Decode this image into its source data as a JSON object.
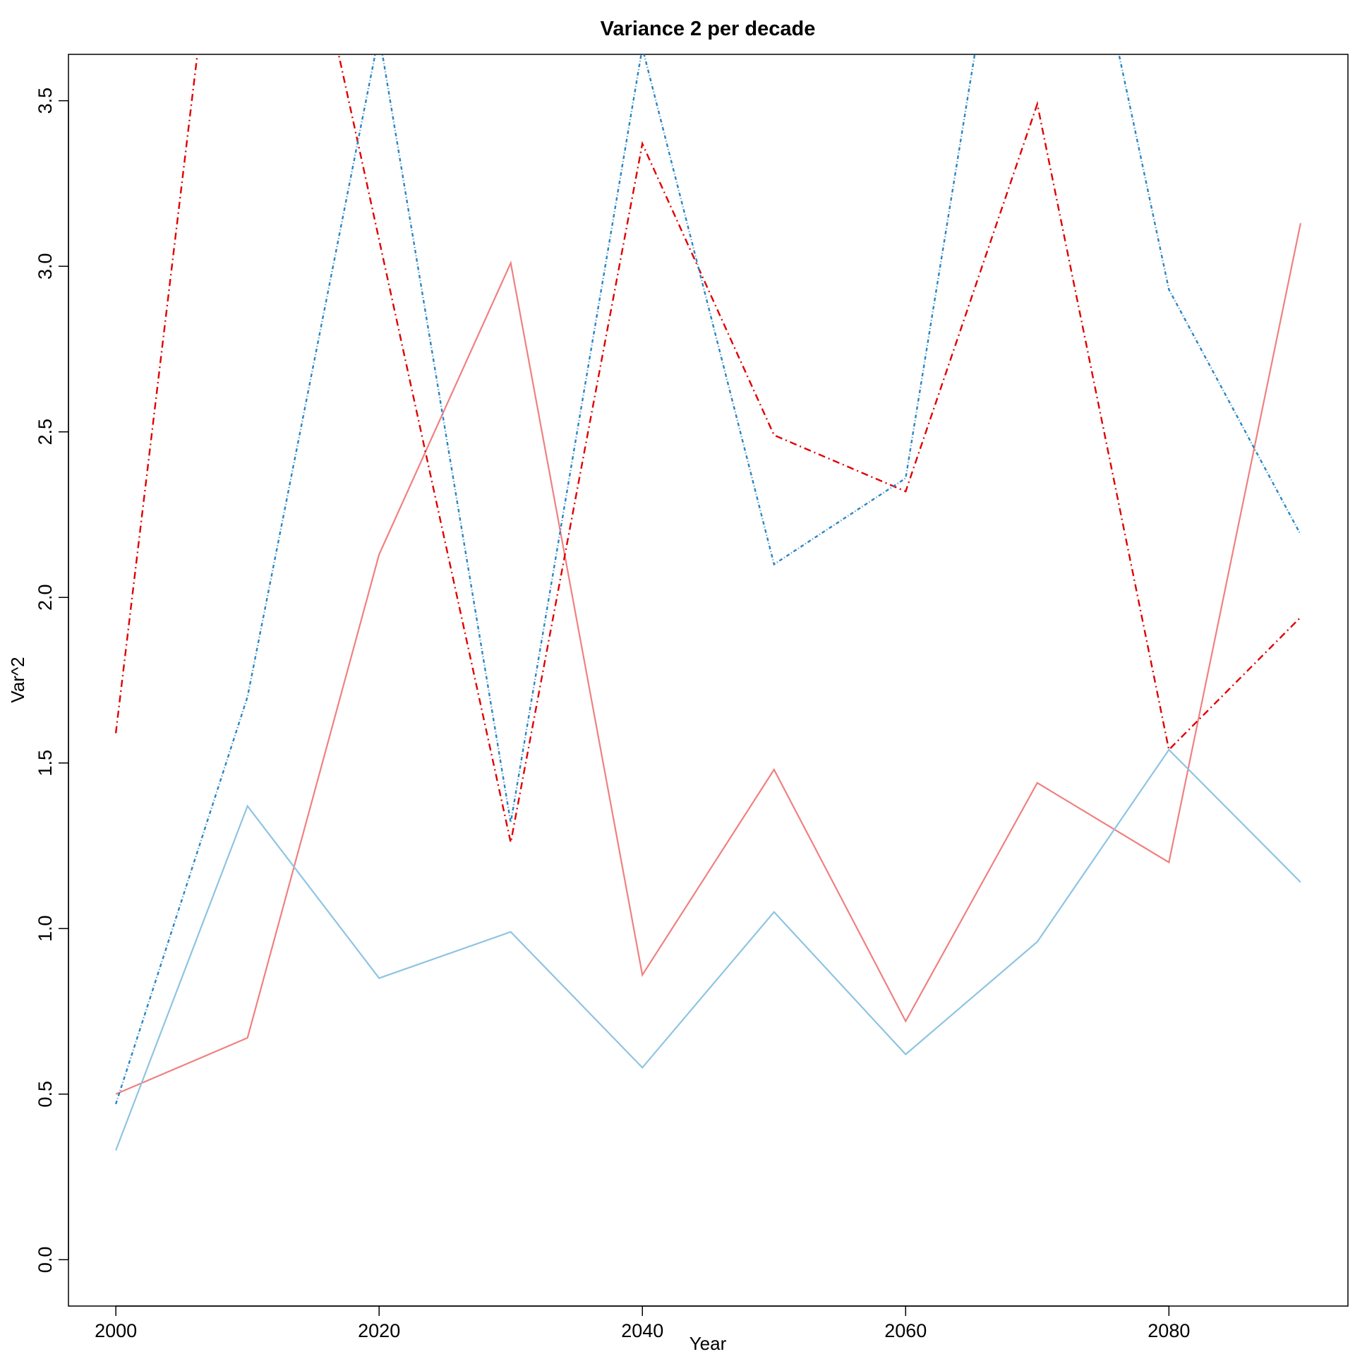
{
  "chart_data": {
    "type": "line",
    "title": "Variance 2 per decade",
    "xlabel": "Year",
    "ylabel": "Var^2",
    "x": [
      2000,
      2010,
      2020,
      2030,
      2040,
      2050,
      2060,
      2070,
      2080,
      2090
    ],
    "xlim": [
      1996.4,
      2093.6
    ],
    "ylim": [
      -0.14,
      3.64
    ],
    "x_ticks": [
      "2000",
      "2020",
      "2040",
      "2060",
      "2080"
    ],
    "x_tick_values": [
      2000,
      2020,
      2040,
      2060,
      2080
    ],
    "y_ticks": [
      "0.0",
      "0.5",
      "1.0",
      "1.5",
      "2.0",
      "2.5",
      "3.0",
      "3.5"
    ],
    "y_tick_values": [
      0,
      0.5,
      1.0,
      1.5,
      2.0,
      2.5,
      3.0,
      3.5
    ],
    "grid": false,
    "legend": "none",
    "series": [
      {
        "color": "#f08080",
        "dash": "solid",
        "values": [
          0.5,
          0.67,
          2.13,
          3.01,
          0.86,
          1.48,
          0.72,
          1.44,
          1.2,
          3.13
        ]
      },
      {
        "color": "#8ec4e2",
        "dash": "solid",
        "values": [
          0.33,
          1.37,
          0.85,
          0.99,
          0.58,
          1.05,
          0.62,
          0.96,
          1.54,
          1.14
        ]
      },
      {
        "color": "#e00000",
        "dash": "dashdot",
        "values": [
          1.59,
          4.9,
          3.08,
          1.26,
          3.37,
          2.49,
          2.32,
          3.49,
          1.54,
          1.94
        ]
      },
      {
        "color": "#2b85c4",
        "dash": "dotdash-fine",
        "values": [
          0.47,
          1.7,
          3.7,
          1.32,
          3.66,
          2.1,
          2.36,
          4.8,
          2.93,
          2.19
        ]
      }
    ]
  }
}
